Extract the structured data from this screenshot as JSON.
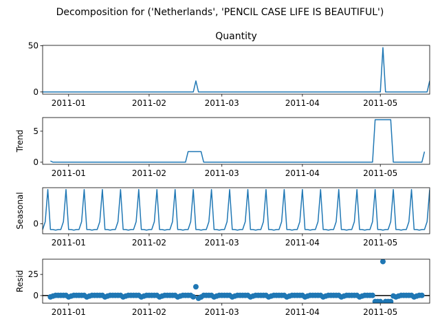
{
  "suptitle": "Decomposition for ('Netherlands', 'PENCIL CASE LIFE IS BEAUTIFUL')",
  "colors": {
    "line": "#1f77b4",
    "axis": "#000000",
    "zero": "#000000"
  },
  "chart_data": [
    {
      "type": "line",
      "title": "Quantity",
      "ylabel": "",
      "ylim": [
        -2.4,
        50.4
      ],
      "yticks": [
        0,
        50
      ],
      "xlim": [
        0,
        149
      ],
      "xticks": [
        {
          "label": "2011-01",
          "day": 10
        },
        {
          "label": "2011-02",
          "day": 41
        },
        {
          "label": "2011-03",
          "day": 69
        },
        {
          "label": "2011-04",
          "day": 100
        },
        {
          "label": "2011-05",
          "day": 130
        }
      ],
      "series": [
        {
          "points": [
            [
              0,
              0
            ],
            [
              58,
              0
            ],
            [
              59,
              12
            ],
            [
              60,
              0
            ],
            [
              130,
              0
            ],
            [
              131,
              48
            ],
            [
              132,
              0
            ],
            [
              148,
              0
            ],
            [
              149,
              12
            ]
          ]
        }
      ]
    },
    {
      "type": "line",
      "title": "",
      "ylabel": "Trend",
      "ylim": [
        -0.34,
        7.2
      ],
      "yticks": [
        0,
        5
      ],
      "xlim": [
        0,
        149
      ],
      "xticks": [
        {
          "label": "2011-01",
          "day": 10
        },
        {
          "label": "2011-02",
          "day": 41
        },
        {
          "label": "2011-03",
          "day": 69
        },
        {
          "label": "2011-04",
          "day": 100
        },
        {
          "label": "2011-05",
          "day": 130
        }
      ],
      "series": [
        {
          "points": [
            [
              3,
              0.2
            ],
            [
              4,
              0
            ],
            [
              55,
              0
            ],
            [
              56,
              1.71
            ],
            [
              61,
              1.71
            ],
            [
              62,
              0
            ],
            [
              127,
              0
            ],
            [
              128,
              6.86
            ],
            [
              134,
              6.86
            ],
            [
              135,
              0
            ],
            [
              146,
              0
            ],
            [
              147,
              1.71
            ]
          ]
        }
      ]
    },
    {
      "type": "line",
      "title": "",
      "ylabel": "Seasonal",
      "ylim": [
        -0.5,
        1.8
      ],
      "yticks": [
        0
      ],
      "xlim": [
        0,
        149
      ],
      "xticks": [
        {
          "label": "2011-01",
          "day": 10
        },
        {
          "label": "2011-02",
          "day": 41
        },
        {
          "label": "2011-03",
          "day": 69
        },
        {
          "label": "2011-04",
          "day": 100
        },
        {
          "label": "2011-05",
          "day": 130
        }
      ],
      "seasonal_cycle": [
        1.71,
        -0.29,
        -0.29,
        -0.32,
        -0.29,
        -0.29,
        0.1
      ],
      "seasonal_start_day": 2,
      "series": []
    },
    {
      "type": "scatter",
      "title": "",
      "ylabel": "Resid",
      "ylim": [
        -9,
        43
      ],
      "yticks": [
        0,
        25
      ],
      "xlim": [
        0,
        149
      ],
      "zero_line": true,
      "xticks": [
        {
          "label": "2011-01",
          "day": 10
        },
        {
          "label": "2011-02",
          "day": 41
        },
        {
          "label": "2011-03",
          "day": 69
        },
        {
          "label": "2011-04",
          "day": 100
        },
        {
          "label": "2011-05",
          "day": 130
        }
      ],
      "range": [
        3,
        146
      ],
      "overrides": {
        "58": -1.5,
        "59": 10.4,
        "60": -3.2,
        "61": -1.7,
        "128": -7.1,
        "129": -7.1,
        "130": -7.1,
        "131": 40.2,
        "132": -7.1,
        "133": -7.1,
        "134": -7.1,
        "135": -0.5
      },
      "series": []
    }
  ]
}
